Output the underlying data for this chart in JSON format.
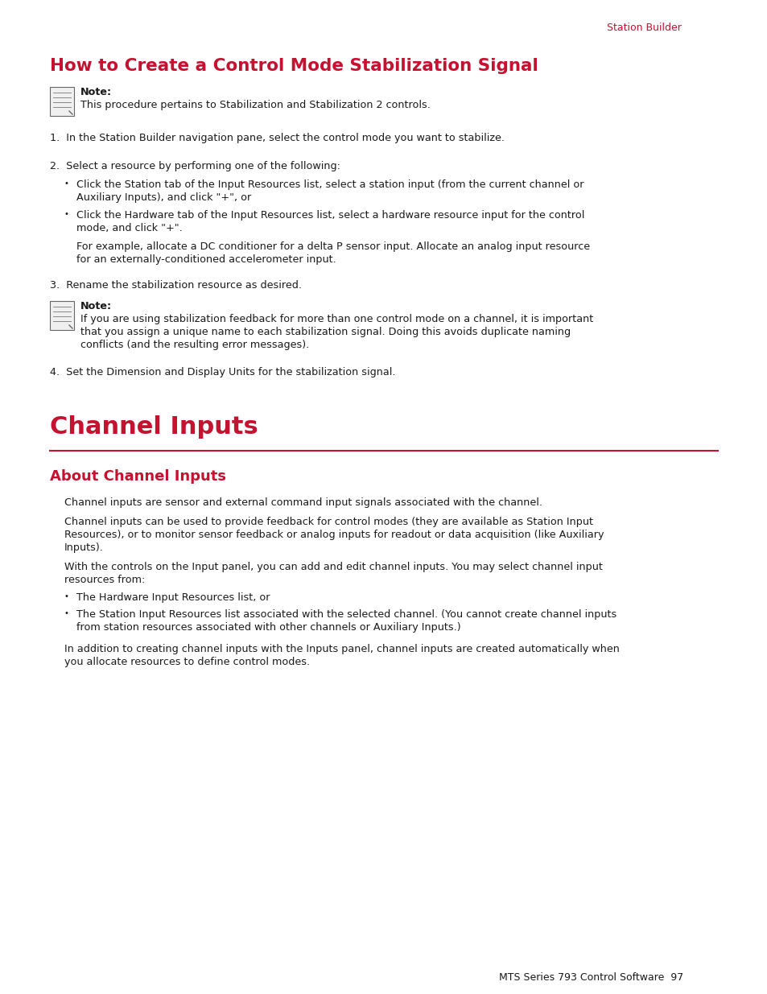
{
  "page_bg": "#ffffff",
  "crimson": "#c41230",
  "black": "#1a1a1a",
  "header_text": "Station Builder",
  "h1_title": "How to Create a Control Mode Stabilization Signal",
  "note1_bold": "Note:",
  "note1_body": "This procedure pertains to Stabilization and Stabilization 2 controls.",
  "step1": "1.  In the Station Builder navigation pane, select the control mode you want to stabilize.",
  "step2_intro": "2.  Select a resource by performing one of the following:",
  "step3": "3.  Rename the stabilization resource as desired.",
  "note2_body_l1": "If you are using stabilization feedback for more than one control mode on a channel, it is important",
  "note2_body_l2": "that you assign a unique name to each stabilization signal. Doing this avoids duplicate naming",
  "note2_body_l3": "conflicts (and the resulting error messages).",
  "step4": "4.  Set the Dimension and Display Units for the stabilization signal.",
  "h2_title": "Channel Inputs",
  "h3_title": "About Channel Inputs",
  "para1": "Channel inputs are sensor and external command input signals associated with the channel.",
  "para2_l1": "Channel inputs can be used to provide feedback for control modes (they are available as Station Input",
  "para2_l2": "Resources), or to monitor sensor feedback or analog inputs for readout or data acquisition (like Auxiliary",
  "para2_l3": "Inputs).",
  "para3_l1": "With the controls on the Input panel, you can add and edit channel inputs. You may select channel input",
  "para3_l2": "resources from:",
  "bullet3": "•   The Hardware Input Resources list, or",
  "bullet4_l1": "•   The Station Input Resources list associated with the selected channel. (You cannot create channel inputs",
  "bullet4_l2": "    from station resources associated with other channels or Auxiliary Inputs.)",
  "para4_l1": "In addition to creating channel inputs with the Inputs panel, channel inputs are created automatically when",
  "para4_l2": "you allocate resources to define control modes.",
  "footer": "MTS Series 793 Control Software  97"
}
